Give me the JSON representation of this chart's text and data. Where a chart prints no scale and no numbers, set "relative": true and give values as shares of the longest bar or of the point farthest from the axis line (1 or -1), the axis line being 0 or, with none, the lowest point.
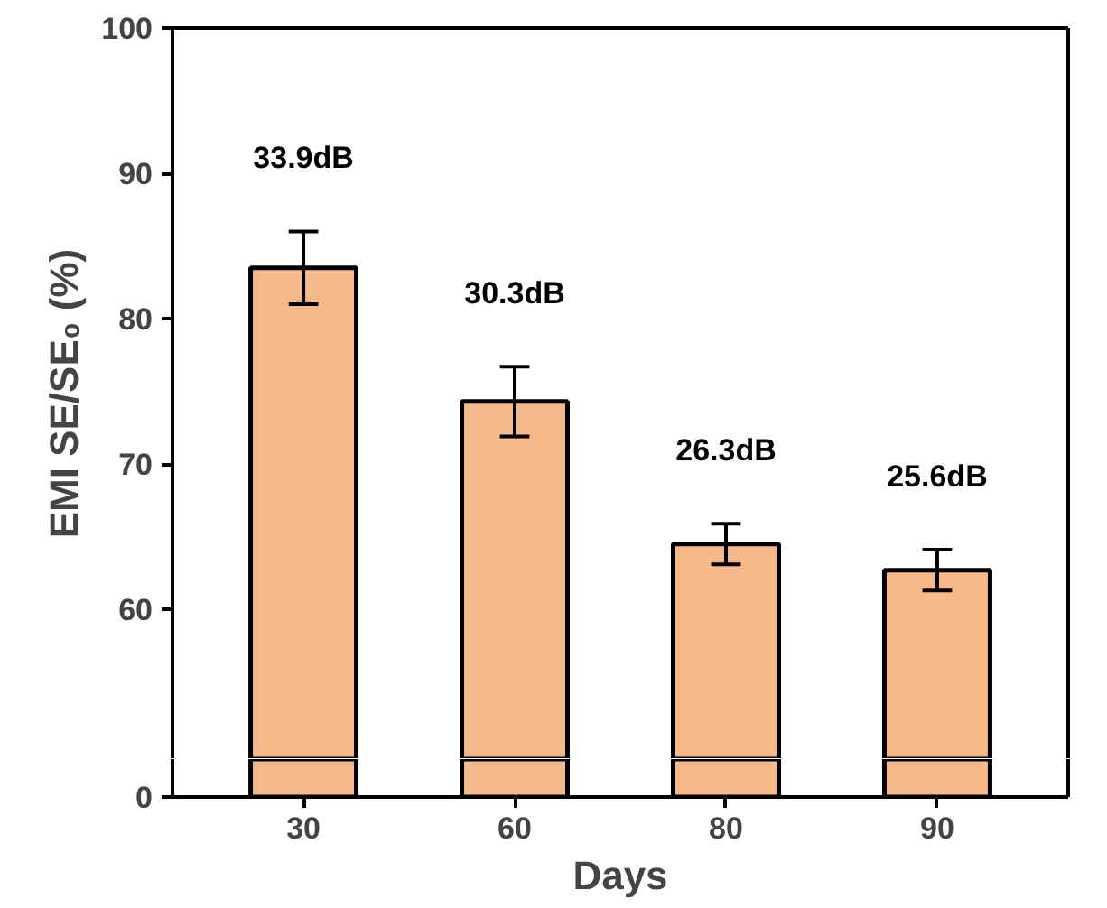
{
  "chart_data": [
    {
      "type": "bar",
      "ylabel": "EMI SE/SE₀ (%)",
      "categories": [
        "30",
        "60",
        "80",
        "90"
      ],
      "values": [
        83.5,
        74.3,
        64.5,
        62.7
      ],
      "errors": [
        2.5,
        2.4,
        1.4,
        1.4
      ],
      "color": "#f6b98a",
      "ylim": [
        49.7,
        100
      ],
      "yticks": [
        60,
        70,
        80,
        90,
        100
      ],
      "tick_labels": "y",
      "annotations": [
        "33.9dB",
        "30.3dB",
        "26.3dB",
        "25.6dB"
      ]
    },
    {
      "type": "bar",
      "xlabel": "Days",
      "categories": [
        "30",
        "60",
        "80",
        "90"
      ],
      "values": [
        1,
        1,
        1,
        1
      ],
      "color": "#f6b98a",
      "relative": true,
      "annotations": [
        "0"
      ]
    }
  ]
}
